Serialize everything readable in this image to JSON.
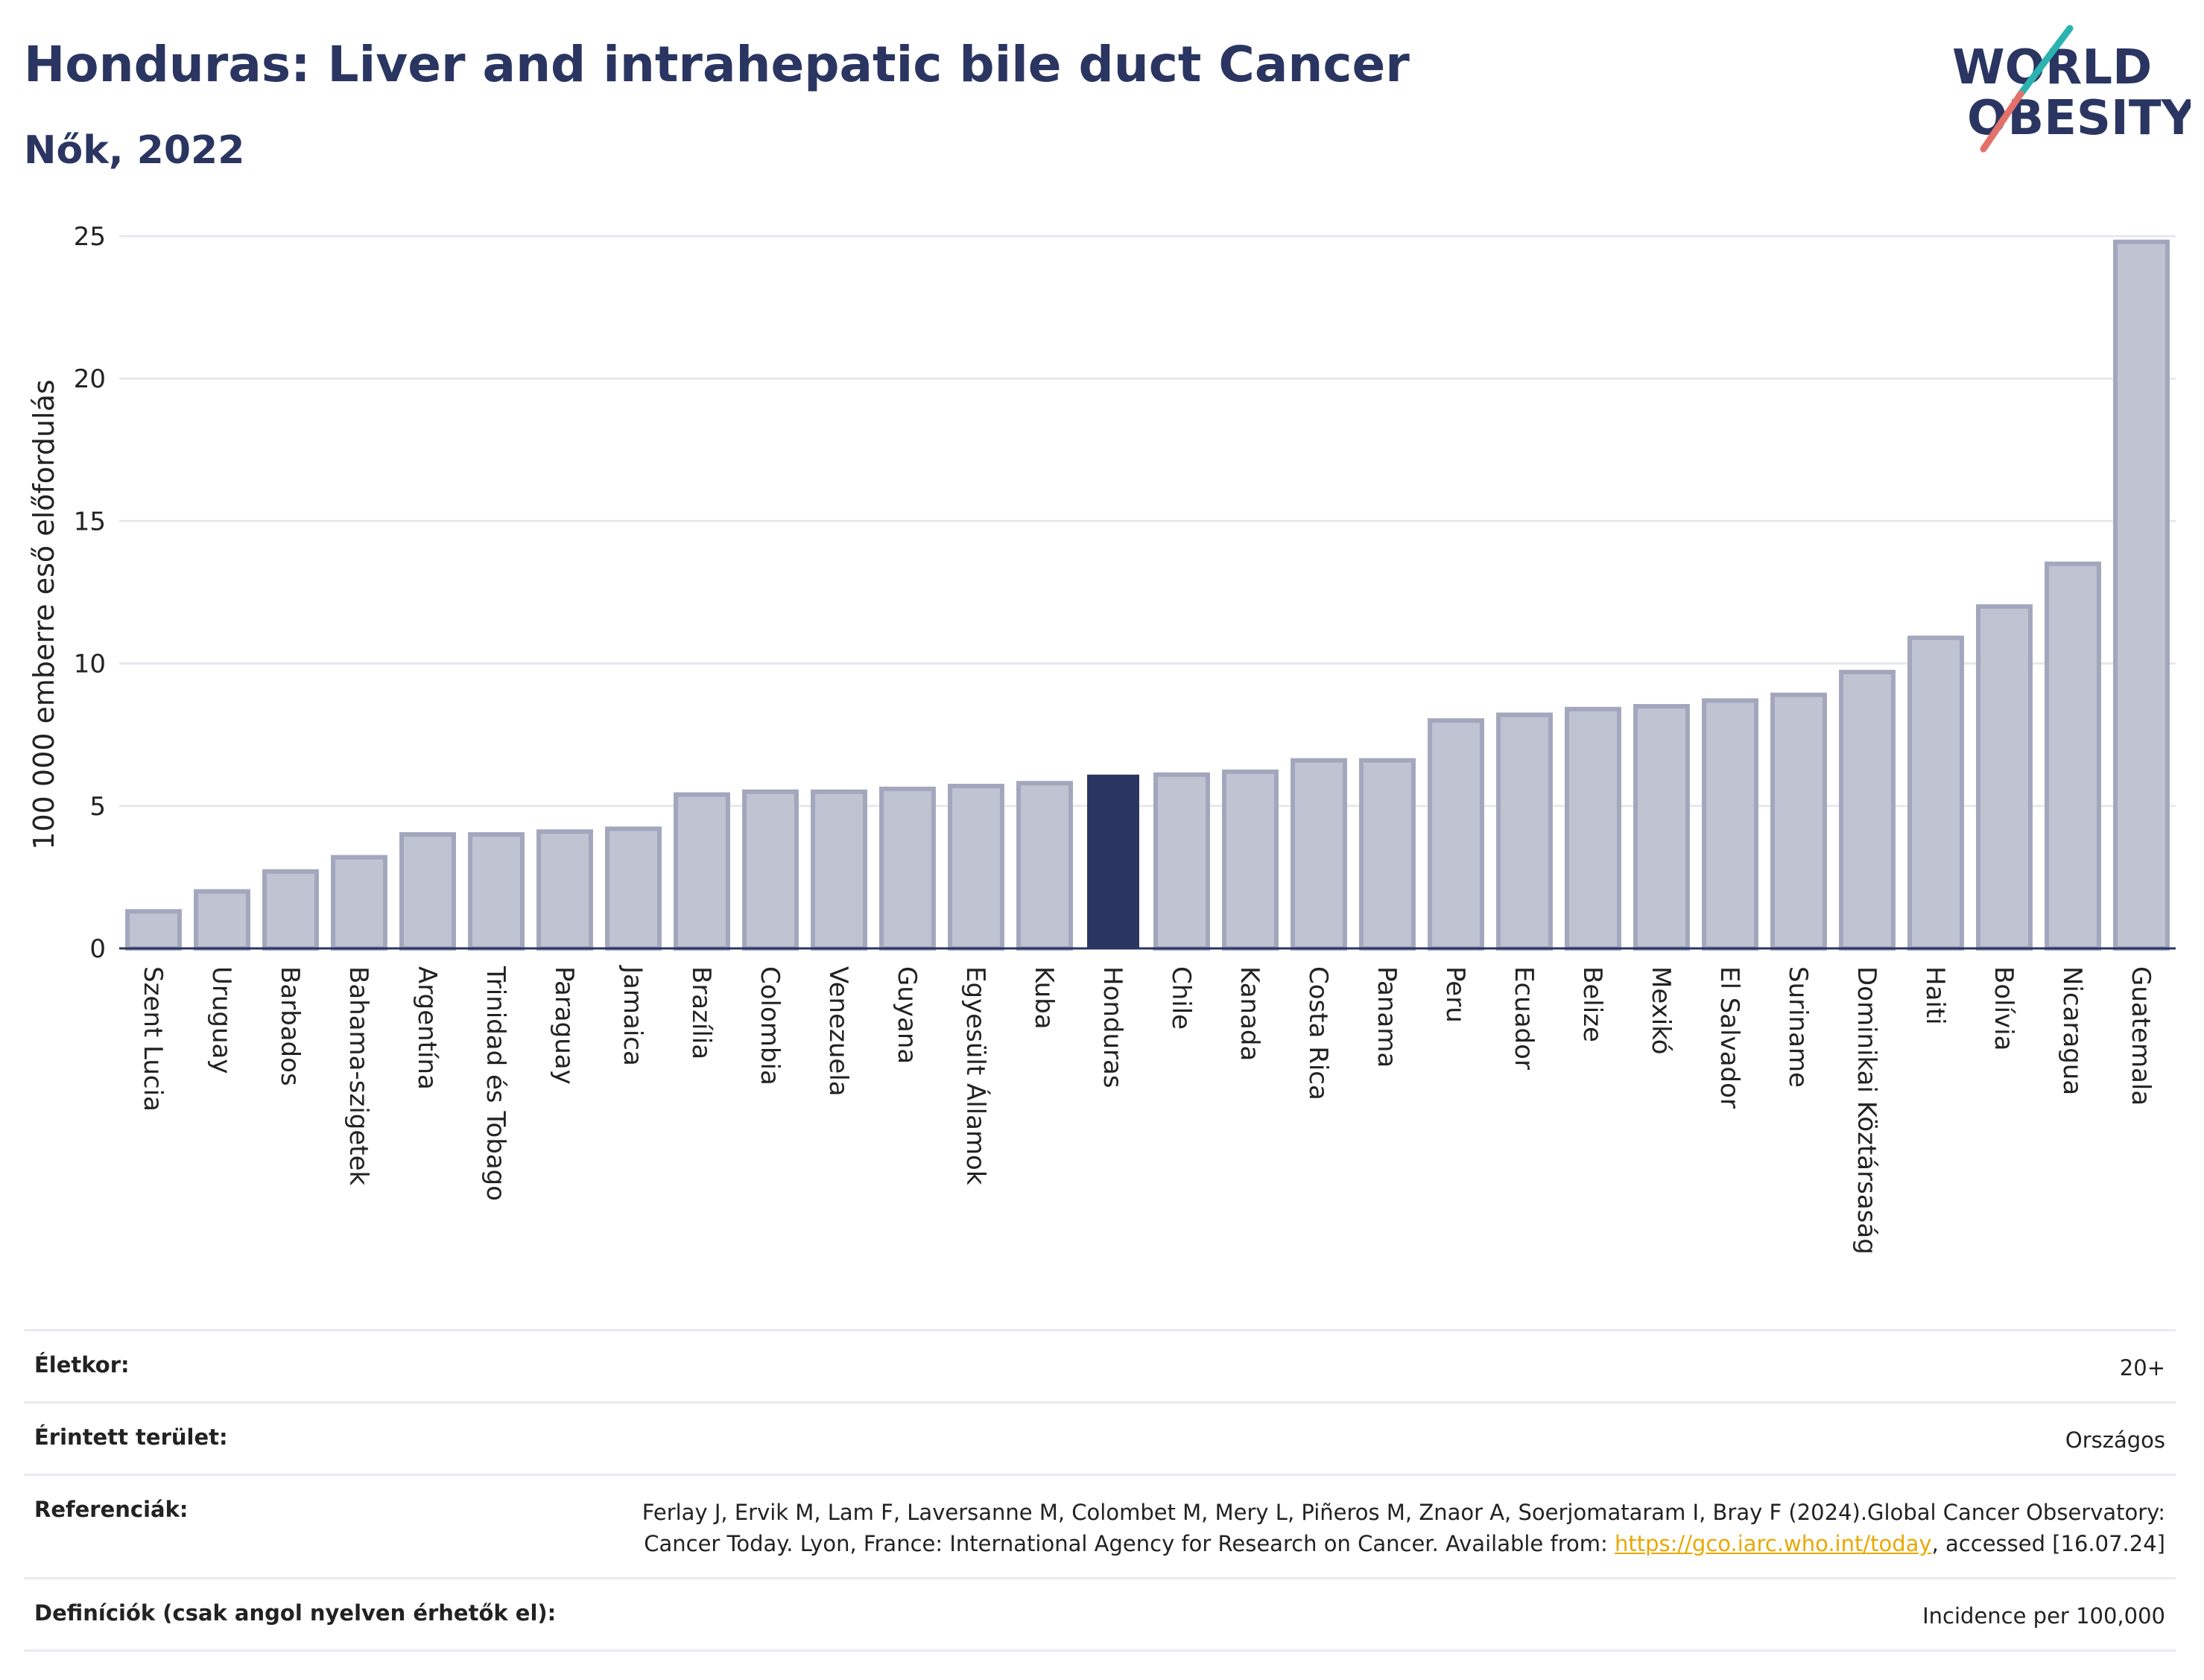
{
  "header": {
    "title": "Honduras: Liver and intrahepatic bile duct Cancer",
    "subtitle": "Nők, 2022"
  },
  "logo": {
    "line1": "WORLD",
    "line2": "OBESITY"
  },
  "colors": {
    "highlight": "#2a3561",
    "bar": "#c0c3d1",
    "bar_border": "#a3a7bd",
    "grid": "#e6e8ee",
    "accent_teal": "#2ab3b1",
    "accent_red": "#e4706a"
  },
  "chart_data": {
    "type": "bar",
    "ylabel": "100 000 emberre eső előfordulás",
    "ylim": [
      0,
      25
    ],
    "yticks": [
      0,
      5,
      10,
      15,
      20,
      25
    ],
    "grid": true,
    "highlight": "Honduras",
    "categories": [
      "Szent Lucia",
      "Uruguay",
      "Barbados",
      "Bahama-szigetek",
      "Argentína",
      "Trinidad és Tobago",
      "Paraguay",
      "Jamaica",
      "Brazília",
      "Colombia",
      "Venezuela",
      "Guyana",
      "Egyesült Államok",
      "Kuba",
      "Honduras",
      "Chile",
      "Kanada",
      "Costa Rica",
      "Panama",
      "Peru",
      "Ecuador",
      "Belize",
      "Mexikó",
      "El Salvador",
      "Suriname",
      "Dominikai Köztársaság",
      "Haiti",
      "Bolívia",
      "Nicaragua",
      "Guatemala"
    ],
    "values": [
      1.3,
      2.0,
      2.7,
      3.2,
      4.0,
      4.0,
      4.1,
      4.2,
      5.4,
      5.5,
      5.5,
      5.6,
      5.7,
      5.8,
      6.1,
      6.1,
      6.2,
      6.6,
      6.6,
      8.0,
      8.2,
      8.4,
      8.5,
      8.7,
      8.9,
      9.7,
      10.9,
      12.0,
      13.5,
      24.8
    ]
  },
  "meta": [
    {
      "key": "Életkor:",
      "value": "20+"
    },
    {
      "key": "Érintett terület:",
      "value": "Országos"
    },
    {
      "key": "Referenciák:",
      "value_pre": "Ferlay J, Ervik M, Lam F, Laversanne M, Colombet M, Mery L, Piñeros M, Znaor A, Soerjomataram I, Bray F (2024).Global Cancer Observatory: Cancer Today. Lyon, France: International Agency for Research on Cancer. Available from: ",
      "link": "https://gco.iarc.who.int/today",
      "value_post": ", accessed [16.07.24]"
    },
    {
      "key": "Definíciók (csak angol nyelven érhetők el):",
      "value": "Incidence per 100,000"
    }
  ]
}
